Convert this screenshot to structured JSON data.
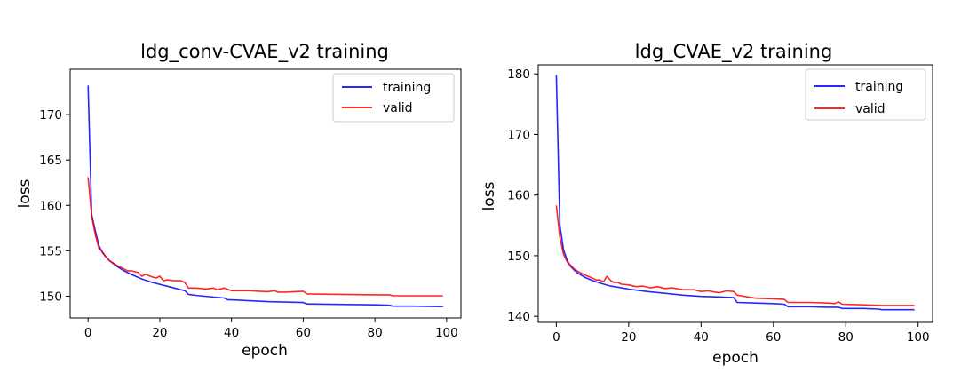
{
  "chart_data": [
    {
      "type": "line",
      "title": "ldg_conv-CVAE_v2 training",
      "xlabel": "epoch",
      "ylabel": "loss",
      "xlim": [
        -5,
        104
      ],
      "ylim": [
        147.6,
        175.0
      ],
      "xticks": [
        0,
        20,
        40,
        60,
        80,
        100
      ],
      "yticks": [
        150,
        155,
        160,
        165,
        170
      ],
      "legend_position": "upper-right",
      "series": [
        {
          "name": "training",
          "color": "#0000ff",
          "x": [
            0,
            1,
            2,
            3,
            4,
            5,
            6,
            8,
            10,
            12,
            15,
            18,
            22,
            25,
            27,
            28,
            30,
            35,
            38,
            39,
            40,
            45,
            50,
            55,
            60,
            61,
            70,
            80,
            84,
            85,
            90,
            99
          ],
          "y": [
            173.2,
            159.0,
            157.2,
            155.6,
            154.8,
            154.3,
            153.9,
            153.3,
            152.8,
            152.4,
            151.9,
            151.5,
            151.1,
            150.8,
            150.6,
            150.2,
            150.1,
            149.9,
            149.8,
            149.6,
            149.6,
            149.5,
            149.4,
            149.35,
            149.3,
            149.15,
            149.1,
            149.05,
            149.0,
            148.9,
            148.9,
            148.85
          ]
        },
        {
          "name": "valid",
          "color": "#ff0000",
          "x": [
            0,
            1,
            2,
            3,
            4,
            5,
            6,
            8,
            10,
            11,
            12,
            14,
            15,
            16,
            18,
            19,
            20,
            21,
            22,
            24,
            26,
            27,
            28,
            30,
            33,
            35,
            36,
            38,
            40,
            45,
            50,
            52,
            53,
            55,
            60,
            61,
            70,
            80,
            84,
            85,
            90,
            99
          ],
          "y": [
            163.1,
            158.8,
            156.8,
            155.3,
            154.9,
            154.3,
            153.9,
            153.4,
            153.0,
            152.8,
            152.8,
            152.6,
            152.2,
            152.4,
            152.1,
            152.0,
            152.2,
            151.7,
            151.8,
            151.7,
            151.7,
            151.5,
            150.9,
            150.9,
            150.8,
            150.9,
            150.7,
            150.9,
            150.6,
            150.6,
            150.5,
            150.6,
            150.45,
            150.45,
            150.55,
            150.25,
            150.2,
            150.15,
            150.15,
            150.05,
            150.05,
            150.05
          ]
        }
      ]
    },
    {
      "type": "line",
      "title": "ldg_CVAE_v2 training",
      "xlabel": "epoch",
      "ylabel": "loss",
      "xlim": [
        -5,
        104
      ],
      "ylim": [
        139.0,
        181.5
      ],
      "xticks": [
        0,
        20,
        40,
        60,
        80,
        100
      ],
      "yticks": [
        140,
        150,
        160,
        170,
        180
      ],
      "legend_position": "upper-right",
      "series": [
        {
          "name": "training",
          "color": "#0000ff",
          "x": [
            0,
            1,
            2,
            3,
            4,
            5,
            6,
            8,
            10,
            12,
            15,
            18,
            20,
            25,
            30,
            35,
            40,
            45,
            49,
            50,
            55,
            60,
            63,
            64,
            70,
            75,
            78,
            79,
            85,
            89,
            90,
            99
          ],
          "y": [
            179.8,
            155.0,
            151.0,
            149.2,
            148.2,
            147.6,
            147.1,
            146.4,
            145.9,
            145.5,
            145.0,
            144.7,
            144.5,
            144.1,
            143.8,
            143.5,
            143.3,
            143.2,
            143.1,
            142.3,
            142.2,
            142.1,
            142.0,
            141.6,
            141.6,
            141.5,
            141.5,
            141.3,
            141.3,
            141.2,
            141.1,
            141.1
          ]
        },
        {
          "name": "valid",
          "color": "#ff0000",
          "x": [
            0,
            1,
            2,
            3,
            4,
            5,
            6,
            8,
            10,
            11,
            12,
            13,
            14,
            15,
            16,
            17,
            18,
            20,
            22,
            24,
            26,
            28,
            30,
            32,
            35,
            38,
            40,
            42,
            44,
            45,
            47,
            49,
            50,
            52,
            55,
            60,
            63,
            64,
            70,
            75,
            77,
            78,
            79,
            85,
            90,
            99
          ],
          "y": [
            158.3,
            153.0,
            150.2,
            149.0,
            148.4,
            147.8,
            147.4,
            146.8,
            146.3,
            146.0,
            146.0,
            145.7,
            146.6,
            145.9,
            145.6,
            145.6,
            145.3,
            145.2,
            144.9,
            145.0,
            144.7,
            144.9,
            144.6,
            144.7,
            144.4,
            144.4,
            144.1,
            144.2,
            144.0,
            143.9,
            144.2,
            144.1,
            143.5,
            143.3,
            143.0,
            142.9,
            142.8,
            142.3,
            142.3,
            142.2,
            142.1,
            142.4,
            142.0,
            141.9,
            141.8,
            141.8
          ]
        }
      ]
    }
  ]
}
